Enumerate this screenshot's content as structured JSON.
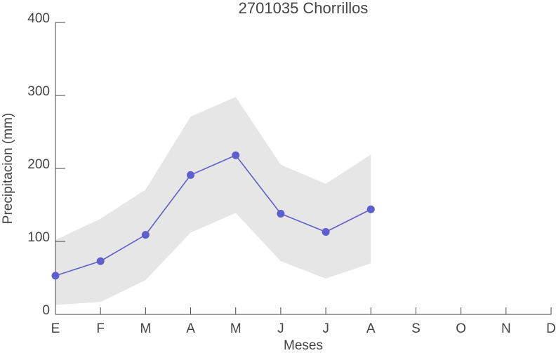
{
  "chart_data": {
    "type": "line",
    "title": "2701035 Chorrillos",
    "xlabel": "Meses",
    "ylabel": "Precipitacion (mm)",
    "categories": [
      "E",
      "F",
      "M",
      "A",
      "M",
      "J",
      "J",
      "A",
      "S",
      "O",
      "N",
      "D"
    ],
    "values": [
      53,
      73,
      109,
      191,
      218,
      138,
      113,
      144,
      null,
      null,
      null,
      null
    ],
    "upper": [
      102,
      131,
      171,
      271,
      298,
      205,
      179,
      219,
      null,
      null,
      null,
      null
    ],
    "lower": [
      13,
      17,
      47,
      112,
      139,
      73,
      49,
      70,
      null,
      null,
      null,
      null
    ],
    "color": "#5f5fcb",
    "band_color": "#e6e6e6",
    "ylim": [
      0,
      400
    ],
    "yticks": [
      0,
      100,
      200,
      300,
      400
    ]
  }
}
